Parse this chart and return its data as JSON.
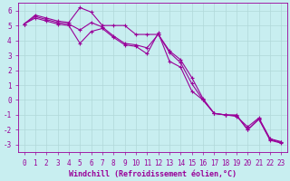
{
  "xlabel": "Windchill (Refroidissement éolien,°C)",
  "background_color": "#c8eef0",
  "grid_color": "#b0d8d8",
  "line_color": "#990099",
  "xlim": [
    -0.5,
    23.5
  ],
  "ylim": [
    -3.5,
    6.5
  ],
  "yticks": [
    -3,
    -2,
    -1,
    0,
    1,
    2,
    3,
    4,
    5,
    6
  ],
  "xticks": [
    0,
    1,
    2,
    3,
    4,
    5,
    6,
    7,
    8,
    9,
    10,
    11,
    12,
    13,
    14,
    15,
    16,
    17,
    18,
    19,
    20,
    21,
    22,
    23
  ],
  "series1_x": [
    0,
    1,
    2,
    3,
    4,
    5,
    6,
    7,
    8,
    9,
    10,
    11,
    12,
    13,
    14,
    15,
    16,
    17,
    18,
    19,
    20,
    21,
    22,
    23
  ],
  "series1_y": [
    5.1,
    5.7,
    5.5,
    5.3,
    5.2,
    6.2,
    5.9,
    5.0,
    5.0,
    5.0,
    4.4,
    4.4,
    4.4,
    3.3,
    2.7,
    1.5,
    0.1,
    -0.9,
    -1.0,
    -1.1,
    -1.8,
    -1.2,
    -2.6,
    -2.8
  ],
  "series2_x": [
    0,
    1,
    2,
    3,
    4,
    5,
    6,
    7,
    8,
    9,
    10,
    11,
    12,
    13,
    14,
    15,
    16,
    17,
    18,
    19,
    20,
    21,
    22,
    23
  ],
  "series2_y": [
    5.1,
    5.5,
    5.3,
    5.1,
    5.0,
    3.8,
    4.6,
    4.8,
    4.2,
    3.7,
    3.6,
    3.1,
    4.5,
    2.6,
    2.2,
    0.6,
    0.0,
    -0.9,
    -1.0,
    -1.0,
    -2.0,
    -1.3,
    -2.7,
    -2.9
  ],
  "series3_x": [
    0,
    1,
    2,
    3,
    4,
    5,
    6,
    7,
    8,
    9,
    10,
    11,
    12,
    13,
    14,
    15,
    16,
    17,
    18,
    19,
    20,
    21,
    22,
    23
  ],
  "series3_y": [
    5.1,
    5.6,
    5.4,
    5.2,
    5.1,
    4.7,
    5.2,
    4.9,
    4.3,
    3.8,
    3.7,
    3.5,
    4.4,
    3.2,
    2.5,
    1.1,
    0.0,
    -0.9,
    -1.0,
    -1.05,
    -2.0,
    -1.25,
    -2.65,
    -2.85
  ],
  "marker": "+",
  "markersize": 3,
  "linewidth": 0.8,
  "label_fontsize": 6,
  "tick_fontsize": 5.5
}
